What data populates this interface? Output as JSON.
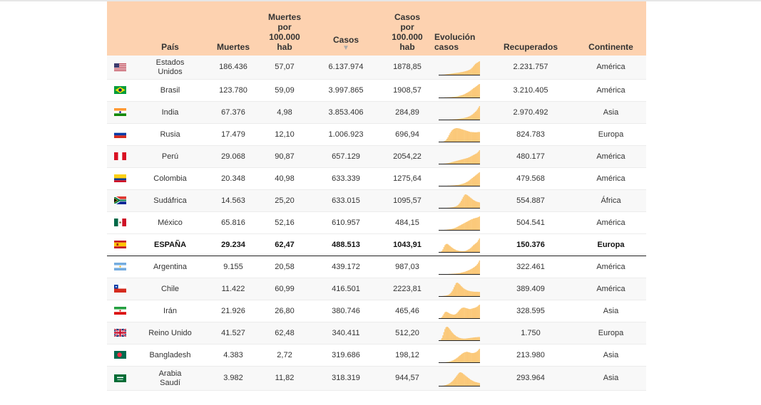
{
  "table": {
    "headers": {
      "pais": "País",
      "muertes": "Muertes",
      "muertes_100k": [
        "Muertes",
        "por",
        "100.000",
        "hab"
      ],
      "casos": "Casos",
      "casos_sort": "▼",
      "casos_100k": [
        "Casos",
        "por",
        "100.000",
        "hab"
      ],
      "evolucion": [
        "Evolución",
        "casos"
      ],
      "recuperados": "Recuperados",
      "continente": "Continente"
    },
    "rows": [
      {
        "flag": "us-flag",
        "pais": [
          "Estados",
          "Unidos"
        ],
        "muertes": "186.436",
        "muertes_100k": "57,07",
        "casos": "6.137.974",
        "casos_100k": "1878,85",
        "recuperados": "2.231.757",
        "continente": "América",
        "trend": [
          0,
          0,
          0,
          1,
          1,
          2,
          3,
          4,
          5,
          6,
          7,
          8,
          9,
          10,
          11,
          12,
          13,
          14,
          15,
          16,
          18,
          19,
          20,
          22,
          24,
          26,
          28,
          30,
          33,
          36,
          40,
          46,
          54,
          62,
          72,
          80,
          86,
          90,
          95,
          100
        ]
      },
      {
        "flag": "br-flag",
        "pais": [
          "Brasil"
        ],
        "muertes": "123.780",
        "muertes_100k": "59,09",
        "casos": "3.997.865",
        "casos_100k": "1908,57",
        "recuperados": "3.210.405",
        "continente": "América",
        "trend": [
          0,
          0,
          0,
          0,
          0,
          1,
          1,
          1,
          2,
          2,
          3,
          3,
          4,
          5,
          5,
          6,
          7,
          8,
          10,
          12,
          14,
          16,
          18,
          21,
          24,
          28,
          32,
          36,
          40,
          45,
          50,
          56,
          62,
          68,
          73,
          78,
          84,
          90,
          96,
          100
        ]
      },
      {
        "flag": "in-flag",
        "pais": [
          "India"
        ],
        "muertes": "67.376",
        "muertes_100k": "4,98",
        "casos": "3.853.406",
        "casos_100k": "284,89",
        "recuperados": "2.970.492",
        "continente": "Asia",
        "trend": [
          0,
          0,
          0,
          0,
          0,
          0,
          0,
          0,
          0,
          0,
          1,
          1,
          1,
          2,
          2,
          3,
          3,
          4,
          5,
          6,
          7,
          8,
          9,
          10,
          12,
          14,
          16,
          18,
          21,
          24,
          28,
          33,
          38,
          44,
          51,
          58,
          66,
          76,
          88,
          100
        ]
      },
      {
        "flag": "ru-flag",
        "pais": [
          "Rusia"
        ],
        "muertes": "17.479",
        "muertes_100k": "12,10",
        "casos": "1.006.923",
        "casos_100k": "696,94",
        "recuperados": "824.783",
        "continente": "Europa",
        "trend": [
          0,
          0,
          0,
          0,
          2,
          5,
          10,
          18,
          28,
          40,
          52,
          62,
          70,
          76,
          80,
          82,
          84,
          84,
          83,
          82,
          80,
          78,
          76,
          74,
          72,
          70,
          68,
          66,
          64,
          62,
          60,
          60,
          59,
          59,
          58,
          58,
          58,
          59,
          60,
          60
        ]
      },
      {
        "flag": "pe-flag",
        "pais": [
          "Perú"
        ],
        "muertes": "29.068",
        "muertes_100k": "90,87",
        "casos": "657.129",
        "casos_100k": "2054,22",
        "recuperados": "480.177",
        "continente": "América",
        "trend": [
          0,
          0,
          0,
          0,
          1,
          1,
          2,
          3,
          4,
          6,
          8,
          10,
          12,
          14,
          16,
          18,
          20,
          22,
          24,
          26,
          28,
          30,
          32,
          34,
          36,
          38,
          40,
          42,
          45,
          48,
          52,
          56,
          60,
          64,
          68,
          72,
          76,
          82,
          90,
          100
        ]
      },
      {
        "flag": "co-flag",
        "pais": [
          "Colombia"
        ],
        "muertes": "20.348",
        "muertes_100k": "40,98",
        "casos": "633.339",
        "casos_100k": "1275,64",
        "recuperados": "479.568",
        "continente": "América",
        "trend": [
          0,
          0,
          0,
          0,
          0,
          0,
          0,
          0,
          1,
          1,
          1,
          2,
          2,
          3,
          3,
          4,
          5,
          6,
          7,
          8,
          10,
          12,
          14,
          16,
          19,
          22,
          26,
          30,
          34,
          40,
          46,
          52,
          58,
          64,
          70,
          76,
          82,
          88,
          94,
          100
        ]
      },
      {
        "flag": "za-flag",
        "pais": [
          "Sudáfrica"
        ],
        "muertes": "14.563",
        "muertes_100k": "25,20",
        "casos": "633.015",
        "casos_100k": "1095,57",
        "recuperados": "554.887",
        "continente": "África",
        "trend": [
          0,
          0,
          0,
          0,
          0,
          0,
          0,
          0,
          1,
          1,
          2,
          3,
          4,
          5,
          7,
          9,
          12,
          16,
          22,
          30,
          40,
          52,
          66,
          80,
          92,
          100,
          98,
          94,
          88,
          82,
          76,
          70,
          64,
          58,
          54,
          50,
          46,
          44,
          42,
          40
        ]
      },
      {
        "flag": "mx-flag",
        "pais": [
          "México"
        ],
        "muertes": "65.816",
        "muertes_100k": "52,16",
        "casos": "610.957",
        "casos_100k": "484,15",
        "recuperados": "504.541",
        "continente": "América",
        "trend": [
          0,
          0,
          0,
          0,
          0,
          1,
          1,
          2,
          3,
          4,
          5,
          6,
          8,
          10,
          12,
          15,
          18,
          22,
          26,
          30,
          34,
          38,
          42,
          46,
          50,
          54,
          58,
          62,
          66,
          70,
          74,
          78,
          80,
          84,
          86,
          88,
          90,
          92,
          95,
          100
        ]
      },
      {
        "flag": "es-flag",
        "pais": [
          "ESPAÑA"
        ],
        "muertes": "29.234",
        "muertes_100k": "62,47",
        "casos": "488.513",
        "casos_100k": "1043,91",
        "recuperados": "150.376",
        "continente": "Europa",
        "highlight": true,
        "trend": [
          0,
          2,
          8,
          20,
          36,
          50,
          58,
          60,
          56,
          50,
          44,
          38,
          32,
          26,
          22,
          18,
          14,
          12,
          10,
          8,
          7,
          6,
          6,
          6,
          7,
          8,
          10,
          14,
          18,
          22,
          28,
          34,
          42,
          50,
          56,
          62,
          68,
          76,
          88,
          100
        ]
      },
      {
        "flag": "ar-flag",
        "pais": [
          "Argentina"
        ],
        "muertes": "9.155",
        "muertes_100k": "20,58",
        "casos": "439.172",
        "casos_100k": "987,03",
        "recuperados": "322.461",
        "continente": "América",
        "trend": [
          0,
          0,
          0,
          0,
          0,
          0,
          0,
          0,
          0,
          1,
          1,
          1,
          2,
          2,
          3,
          3,
          4,
          5,
          6,
          7,
          8,
          10,
          12,
          14,
          16,
          18,
          21,
          24,
          27,
          30,
          34,
          38,
          42,
          47,
          52,
          58,
          65,
          74,
          86,
          100
        ]
      },
      {
        "flag": "cl-flag",
        "pais": [
          "Chile"
        ],
        "muertes": "11.422",
        "muertes_100k": "60,99",
        "casos": "416.501",
        "casos_100k": "2223,81",
        "recuperados": "389.409",
        "continente": "América",
        "trend": [
          0,
          0,
          0,
          1,
          2,
          3,
          4,
          6,
          8,
          12,
          18,
          26,
          36,
          50,
          66,
          82,
          96,
          100,
          96,
          90,
          82,
          74,
          66,
          60,
          54,
          50,
          46,
          42,
          40,
          38,
          36,
          35,
          34,
          33,
          32,
          32,
          32,
          32,
          31,
          31
        ]
      },
      {
        "flag": "ir-flag",
        "pais": [
          "Irán"
        ],
        "muertes": "21.926",
        "muertes_100k": "26,80",
        "casos": "380.746",
        "casos_100k": "465,46",
        "recuperados": "328.595",
        "continente": "Asia",
        "trend": [
          0,
          2,
          8,
          18,
          30,
          40,
          44,
          42,
          38,
          34,
          30,
          28,
          26,
          24,
          24,
          26,
          30,
          36,
          44,
          52,
          60,
          66,
          70,
          72,
          72,
          70,
          68,
          66,
          64,
          62,
          62,
          64,
          66,
          68,
          70,
          72,
          76,
          80,
          86,
          92
        ]
      },
      {
        "flag": "gb-flag",
        "pais": [
          "Reino Unido"
        ],
        "muertes": "41.527",
        "muertes_100k": "62,48",
        "casos": "340.411",
        "casos_100k": "512,20",
        "recuperados": "1.750",
        "continente": "Europa",
        "trend": [
          0,
          4,
          16,
          36,
          60,
          82,
          96,
          100,
          96,
          88,
          78,
          68,
          58,
          50,
          42,
          36,
          30,
          26,
          22,
          18,
          16,
          14,
          13,
          12,
          12,
          12,
          13,
          14,
          15,
          16,
          17,
          18,
          19,
          20,
          21,
          22,
          22,
          23,
          24,
          24
        ]
      },
      {
        "flag": "bd-flag",
        "pais": [
          "Bangladesh"
        ],
        "muertes": "4.383",
        "muertes_100k": "2,72",
        "casos": "319.686",
        "casos_100k": "198,12",
        "recuperados": "213.980",
        "continente": "Asia",
        "trend": [
          0,
          0,
          0,
          0,
          0,
          0,
          1,
          2,
          3,
          4,
          6,
          8,
          11,
          14,
          18,
          22,
          27,
          32,
          38,
          44,
          50,
          56,
          62,
          66,
          70,
          72,
          74,
          74,
          72,
          70,
          68,
          66,
          66,
          66,
          68,
          70,
          74,
          80,
          88,
          96
        ]
      },
      {
        "flag": "sa-flag",
        "pais": [
          "Arabia",
          "Saudí"
        ],
        "muertes": "3.982",
        "muertes_100k": "11,82",
        "casos": "318.319",
        "casos_100k": "944,57",
        "recuperados": "293.964",
        "continente": "Asia",
        "trend": [
          0,
          0,
          0,
          1,
          2,
          4,
          6,
          9,
          12,
          16,
          20,
          26,
          32,
          40,
          48,
          58,
          68,
          78,
          88,
          96,
          100,
          98,
          94,
          88,
          82,
          76,
          70,
          64,
          58,
          52,
          46,
          42,
          38,
          34,
          30,
          28,
          26,
          24,
          22,
          20
        ]
      }
    ]
  },
  "colors": {
    "header_bg": "#fdd2b0",
    "spark_fill": "#fbc97a",
    "spark_baseline": "#222222",
    "highlight_border": "#222222"
  }
}
